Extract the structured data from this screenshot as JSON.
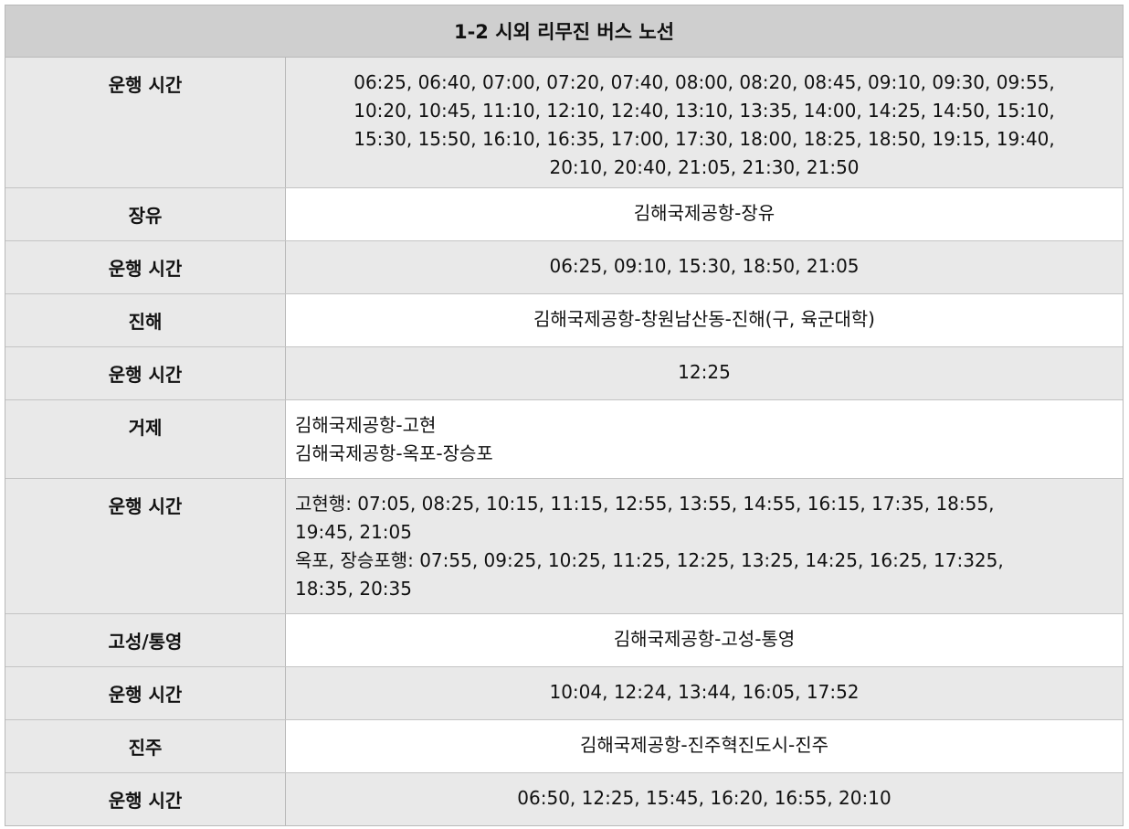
{
  "title": "1-2 시외 리무진 버스 노선",
  "rows": [
    {
      "label": "운행 시간",
      "lines": [
        "06:25, 06:40, 07:00, 07:20, 07:40, 08:00, 08:20, 08:45, 09:10, 09:30, 09:55,",
        "10:20, 10:45, 11:10, 12:10, 12:40, 13:10, 13:35, 14:00, 14:25, 14:50, 15:10,",
        "15:30, 15:50, 16:10, 16:35, 17:00, 17:30, 18:00, 18:25, 18:50, 19:15, 19:40,",
        "20:10, 20:40, 21:05, 21:30, 21:50"
      ]
    },
    {
      "label": "장유",
      "lines": [
        "김해국제공항-장유"
      ]
    },
    {
      "label": "운행 시간",
      "lines": [
        "06:25, 09:10, 15:30, 18:50, 21:05"
      ]
    },
    {
      "label": "진해",
      "lines": [
        "김해국제공항-창원남산동-진해(구, 육군대학)"
      ]
    },
    {
      "label": "운행 시간",
      "lines": [
        "12:25"
      ]
    },
    {
      "label": "거제",
      "lines": [
        "김해국제공항-고현",
        "김해국제공항-옥포-장승포"
      ]
    },
    {
      "label": "운행 시간",
      "lines": [
        "고현행: 07:05, 08:25, 10:15, 11:15, 12:55, 13:55, 14:55, 16:15, 17:35, 18:55,",
        "19:45, 21:05",
        "옥포, 장승포행: 07:55, 09:25, 10:25, 11:25, 12:25, 13:25, 14:25, 16:25, 17:325,",
        "18:35, 20:35"
      ]
    },
    {
      "label": "고성/통영",
      "lines": [
        "김해국제공항-고성-통영"
      ]
    },
    {
      "label": "운행 시간",
      "lines": [
        "10:04, 12:24, 13:44, 16:05, 17:52"
      ]
    },
    {
      "label": "진주",
      "lines": [
        "김해국제공항-진주혁진도시-진주"
      ]
    },
    {
      "label": "운행 시간",
      "lines": [
        "06:50, 12:25, 15:45, 16:20, 16:55, 20:10"
      ]
    }
  ]
}
